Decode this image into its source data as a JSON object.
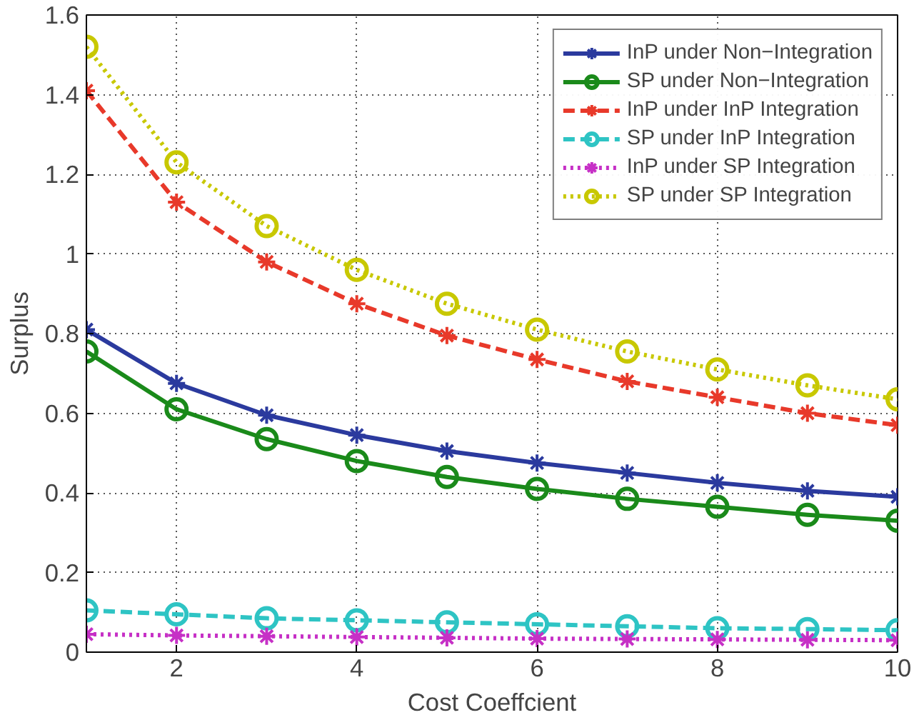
{
  "chart_data": {
    "type": "line",
    "xlabel": "Cost Coeffcient",
    "ylabel": "Surplus",
    "x": [
      1,
      2,
      3,
      4,
      5,
      6,
      7,
      8,
      9,
      10
    ],
    "xlim": [
      1,
      10
    ],
    "xticks": [
      2,
      4,
      6,
      8,
      10
    ],
    "ylim": [
      0,
      1.6
    ],
    "yticks": [
      0,
      0.2,
      0.4,
      0.6,
      0.8,
      1,
      1.2,
      1.4,
      1.6
    ],
    "grid": true,
    "legend": "top right",
    "series": [
      {
        "name": "InP under Non−Integration",
        "color": "#2b3a9e",
        "marker": "cross",
        "line_style": "solid",
        "values": [
          0.81,
          0.675,
          0.595,
          0.545,
          0.505,
          0.475,
          0.45,
          0.425,
          0.405,
          0.39
        ]
      },
      {
        "name": "SP under Non−Integration",
        "color": "#1a8a1a",
        "marker": "circle",
        "line_style": "solid",
        "values": [
          0.755,
          0.61,
          0.535,
          0.48,
          0.44,
          0.41,
          0.385,
          0.365,
          0.345,
          0.33
        ]
      },
      {
        "name": "InP under InP Integration",
        "color": "#e8392a",
        "marker": "cross",
        "line_style": "dashed",
        "values": [
          1.41,
          1.13,
          0.98,
          0.875,
          0.795,
          0.735,
          0.68,
          0.64,
          0.6,
          0.57
        ]
      },
      {
        "name": "SP under InP Integration",
        "color": "#2ec4c4",
        "marker": "circle",
        "line_style": "dashed",
        "values": [
          0.105,
          0.095,
          0.085,
          0.08,
          0.075,
          0.07,
          0.065,
          0.06,
          0.058,
          0.055
        ]
      },
      {
        "name": "InP under SP Integration",
        "color": "#c630c6",
        "marker": "cross",
        "line_style": "dotted",
        "values": [
          0.045,
          0.042,
          0.04,
          0.038,
          0.036,
          0.034,
          0.033,
          0.032,
          0.031,
          0.03
        ]
      },
      {
        "name": "SP under SP Integration",
        "color": "#c8c800",
        "marker": "circle",
        "line_style": "dotted",
        "values": [
          1.52,
          1.23,
          1.07,
          0.96,
          0.875,
          0.81,
          0.755,
          0.71,
          0.67,
          0.635
        ]
      }
    ]
  }
}
